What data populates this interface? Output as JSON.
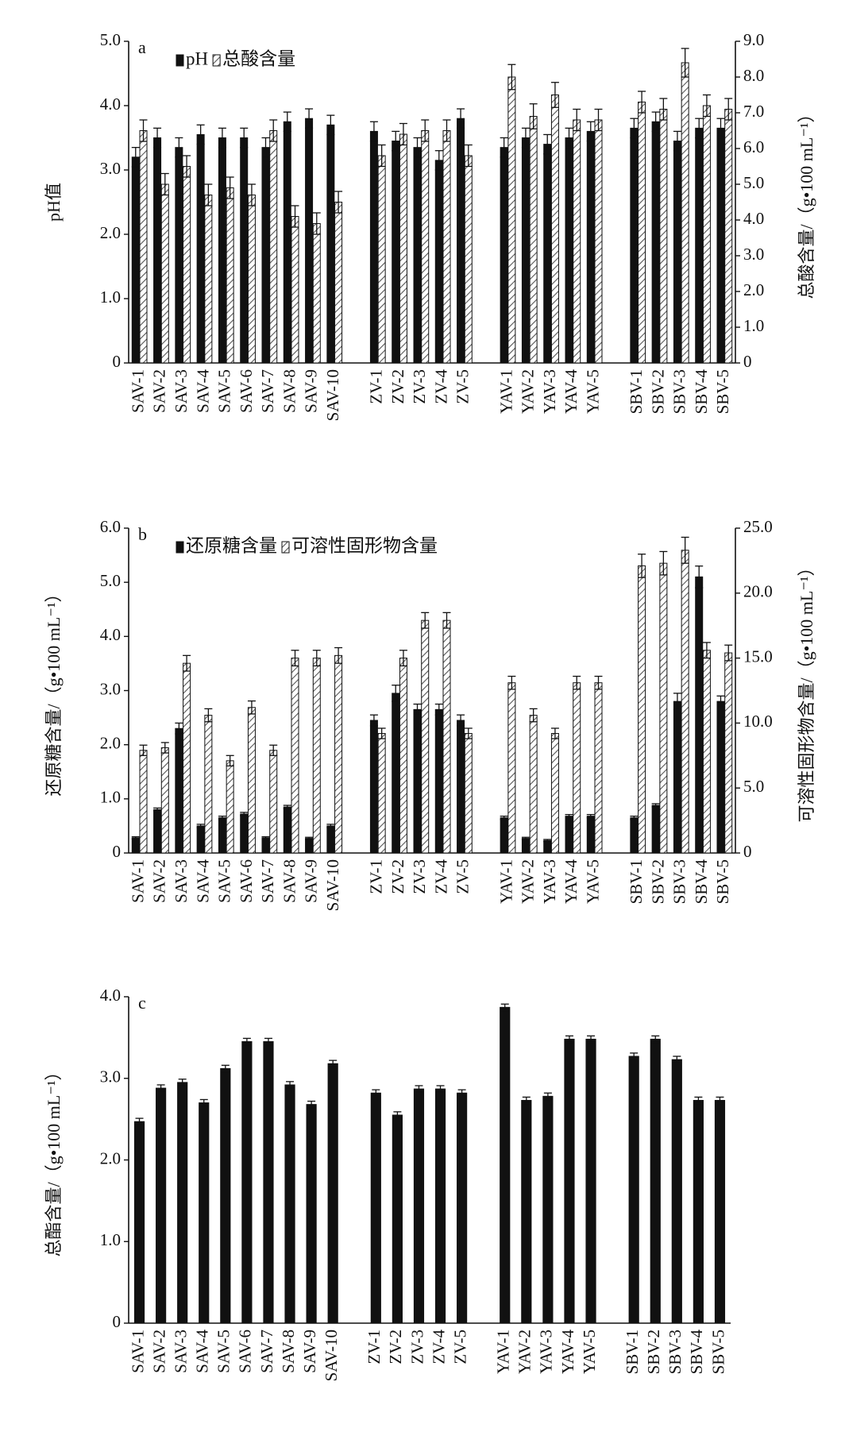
{
  "chart_data": [
    {
      "type": "bar",
      "annotation": "a",
      "legend": "upper left",
      "grid": false,
      "categories": [
        "SAV-1",
        "SAV-2",
        "SAV-3",
        "SAV-4",
        "SAV-5",
        "SAV-6",
        "SAV-7",
        "SAV-8",
        "SAV-9",
        "SAV-10",
        null,
        "ZV-1",
        "ZV-2",
        "ZV-3",
        "ZV-4",
        "ZV-5",
        null,
        "YAV-1",
        "YAV-2",
        "YAV-3",
        "YAV-4",
        "YAV-5",
        null,
        "SBV-1",
        "SBV-2",
        "SBV-3",
        "SBV-4",
        "SBV-5"
      ],
      "ylabel": "pH值",
      "y2label": "总酸含量/（g•100 mL⁻¹）",
      "ylim": [
        0,
        5
      ],
      "yticks": [
        0,
        {
          "value": 1,
          "label": "1.0"
        },
        {
          "value": 2,
          "label": "2.0"
        },
        {
          "value": 3,
          "label": "3.0"
        },
        {
          "value": 4,
          "label": "4.0"
        },
        {
          "value": 5,
          "label": "5.0"
        }
      ],
      "y2lim": [
        0,
        9
      ],
      "y2ticks": [
        0,
        {
          "value": 1,
          "label": "1.0"
        },
        {
          "value": 2,
          "label": "2.0"
        },
        {
          "value": 3,
          "label": "3.0"
        },
        {
          "value": 4,
          "label": "4.0"
        },
        {
          "value": 5,
          "label": "5.0"
        },
        {
          "value": 6,
          "label": "6.0"
        },
        {
          "value": 7,
          "label": "7.0"
        },
        {
          "value": 8,
          "label": "8.0"
        },
        {
          "value": 9,
          "label": "9.0"
        }
      ],
      "series": [
        {
          "name": "pH",
          "color": "#111111",
          "pattern": "solid",
          "values": [
            3.2,
            3.5,
            3.35,
            3.55,
            3.5,
            3.5,
            3.35,
            3.75,
            3.8,
            3.7,
            null,
            3.6,
            3.45,
            3.35,
            3.15,
            3.8,
            null,
            3.35,
            3.5,
            3.4,
            3.5,
            3.6,
            null,
            3.65,
            3.75,
            3.45,
            3.65,
            3.65
          ],
          "errors": [
            0.15,
            0.15,
            0.15,
            0.15,
            0.15,
            0.15,
            0.15,
            0.15,
            0.15,
            0.15,
            null,
            0.15,
            0.15,
            0.15,
            0.15,
            0.15,
            null,
            0.15,
            0.15,
            0.15,
            0.15,
            0.15,
            null,
            0.15,
            0.15,
            0.15,
            0.15,
            0.15
          ]
        },
        {
          "name": "总酸含量",
          "color": "#555555",
          "pattern": "hatch",
          "axis": "y2",
          "values": [
            6.5,
            5.0,
            5.5,
            4.7,
            4.9,
            4.7,
            6.5,
            4.1,
            3.9,
            4.5,
            null,
            5.8,
            6.4,
            6.5,
            6.5,
            5.8,
            null,
            8.0,
            6.9,
            7.5,
            6.8,
            6.8,
            null,
            7.3,
            7.1,
            8.4,
            7.2,
            7.1
          ],
          "errors": [
            0.3,
            0.3,
            0.3,
            0.3,
            0.3,
            0.3,
            0.3,
            0.3,
            0.3,
            0.3,
            null,
            0.3,
            0.3,
            0.3,
            0.3,
            0.3,
            null,
            0.35,
            0.35,
            0.35,
            0.3,
            0.3,
            null,
            0.3,
            0.3,
            0.4,
            0.3,
            0.3
          ]
        }
      ]
    },
    {
      "type": "bar",
      "annotation": "b",
      "legend": "upper left",
      "grid": false,
      "categories": [
        "SAV-1",
        "SAV-2",
        "SAV-3",
        "SAV-4",
        "SAV-5",
        "SAV-6",
        "SAV-7",
        "SAV-8",
        "SAV-9",
        "SAV-10",
        null,
        "ZV-1",
        "ZV-2",
        "ZV-3",
        "ZV-4",
        "ZV-5",
        null,
        "YAV-1",
        "YAV-2",
        "YAV-3",
        "YAV-4",
        "YAV-5",
        null,
        "SBV-1",
        "SBV-2",
        "SBV-3",
        "SBV-4",
        "SBV-5"
      ],
      "ylabel": "还原糖含量/（g•100 mL⁻¹）",
      "y2label": "可溶性固形物含量/（g•100 mL⁻¹）",
      "ylim": [
        0,
        6
      ],
      "yticks": [
        0,
        {
          "value": 1,
          "label": "1.0"
        },
        {
          "value": 2,
          "label": "2.0"
        },
        {
          "value": 3,
          "label": "3.0"
        },
        {
          "value": 4,
          "label": "4.0"
        },
        {
          "value": 5,
          "label": "5.0"
        },
        {
          "value": 6,
          "label": "6.0"
        }
      ],
      "y2lim": [
        0,
        25
      ],
      "y2ticks": [
        0,
        {
          "value": 5,
          "label": "5.0"
        },
        {
          "value": 10,
          "label": "10.0"
        },
        {
          "value": 15,
          "label": "15.0"
        },
        {
          "value": 20,
          "label": "20.0"
        },
        {
          "value": 25,
          "label": "25.0"
        }
      ],
      "series": [
        {
          "name": "还原糖含量",
          "color": "#111111",
          "pattern": "solid",
          "values": [
            0.28,
            0.8,
            2.3,
            0.5,
            0.65,
            0.72,
            0.28,
            0.85,
            0.27,
            0.5,
            null,
            2.45,
            2.95,
            2.65,
            2.65,
            2.45,
            null,
            0.65,
            0.27,
            0.23,
            0.68,
            0.68,
            null,
            0.65,
            0.88,
            2.8,
            5.1,
            2.8
          ],
          "errors": [
            0.02,
            0.03,
            0.1,
            0.03,
            0.03,
            0.03,
            0.02,
            0.03,
            0.02,
            0.03,
            null,
            0.1,
            0.15,
            0.1,
            0.1,
            0.1,
            null,
            0.03,
            0.02,
            0.02,
            0.03,
            0.03,
            null,
            0.03,
            0.03,
            0.15,
            0.2,
            0.1
          ]
        },
        {
          "name": "可溶性固形物含量",
          "color": "#555555",
          "pattern": "hatch",
          "axis": "y2",
          "values": [
            7.9,
            8.1,
            14.6,
            10.6,
            7.1,
            11.2,
            7.9,
            15.0,
            15.0,
            15.2,
            null,
            9.2,
            15.0,
            17.9,
            17.9,
            9.2,
            null,
            13.1,
            10.6,
            9.2,
            13.1,
            13.1,
            null,
            22.1,
            22.3,
            23.3,
            15.6,
            15.4
          ],
          "errors": [
            0.4,
            0.4,
            0.6,
            0.5,
            0.4,
            0.5,
            0.4,
            0.6,
            0.6,
            0.6,
            null,
            0.4,
            0.6,
            0.6,
            0.6,
            0.4,
            null,
            0.5,
            0.5,
            0.4,
            0.5,
            0.5,
            null,
            0.9,
            0.9,
            1.0,
            0.6,
            0.6
          ]
        }
      ]
    },
    {
      "type": "bar",
      "annotation": "c",
      "grid": false,
      "categories": [
        "SAV-1",
        "SAV-2",
        "SAV-3",
        "SAV-4",
        "SAV-5",
        "SAV-6",
        "SAV-7",
        "SAV-8",
        "SAV-9",
        "SAV-10",
        null,
        "ZV-1",
        "ZV-2",
        "ZV-3",
        "ZV-4",
        "ZV-5",
        null,
        "YAV-1",
        "YAV-2",
        "YAV-3",
        "YAV-4",
        "YAV-5",
        null,
        "SBV-1",
        "SBV-2",
        "SBV-3",
        "SBV-4",
        "SBV-5"
      ],
      "ylabel": "总酯含量/（g•100 mL⁻¹）",
      "ylim": [
        0,
        4
      ],
      "yticks": [
        0,
        {
          "value": 1,
          "label": "1.0"
        },
        {
          "value": 2,
          "label": "2.0"
        },
        {
          "value": 3,
          "label": "3.0"
        },
        {
          "value": 4,
          "label": "4.0"
        }
      ],
      "color": "#111111",
      "values": [
        2.47,
        2.88,
        2.95,
        2.7,
        3.12,
        3.45,
        3.45,
        2.92,
        2.68,
        3.18,
        null,
        2.82,
        2.55,
        2.87,
        2.87,
        2.82,
        null,
        3.87,
        2.73,
        2.78,
        3.48,
        3.48,
        null,
        3.27,
        3.48,
        3.23,
        2.73,
        2.73
      ],
      "errors": [
        0.04,
        0.04,
        0.04,
        0.04,
        0.04,
        0.04,
        0.04,
        0.04,
        0.04,
        0.04,
        null,
        0.04,
        0.04,
        0.04,
        0.04,
        0.04,
        null,
        0.04,
        0.04,
        0.04,
        0.04,
        0.04,
        null,
        0.04,
        0.04,
        0.04,
        0.04,
        0.04
      ]
    }
  ]
}
